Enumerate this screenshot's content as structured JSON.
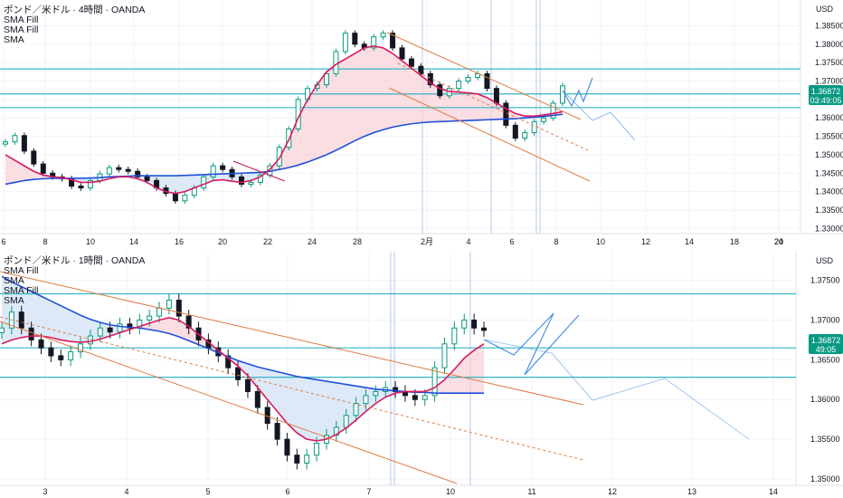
{
  "colors": {
    "candle_up": "#089981",
    "candle_down": "#131722",
    "sma_fast": "#d81b60",
    "sma_slow": "#1e4fd8",
    "fill_up": "#f8d0d6",
    "fill_down": "#cfe0f4",
    "level_line": "#33b5c5",
    "channel": "#e07a3e",
    "projection": "#4a90e2",
    "price_tag": "#089981",
    "session_line": "#b8c7e8"
  },
  "chart_data": [
    {
      "type": "candlestick",
      "title": "ポンド／米ドル · 4時間 · OANDA",
      "indicators": [
        "SMA Fill",
        "SMA Fill",
        "SMA"
      ],
      "currency": "USD",
      "y_ticks": [
        "1.38500",
        "1.38000",
        "1.37500",
        "1.37000",
        "1.36500",
        "1.36000",
        "1.35500",
        "1.35000",
        "1.34500",
        "1.34000",
        "1.33500",
        "1.33000"
      ],
      "ylim": [
        1.3286,
        1.392
      ],
      "x_ticks": [
        "6",
        "8",
        "10",
        "14",
        "16",
        "20",
        "22",
        "24",
        "28",
        "2月",
        "4",
        "6",
        "8",
        "10",
        "12",
        "14",
        "18",
        "20",
        "24"
      ],
      "last_price": "1.36872",
      "countdown": "03:49:05",
      "horizontal_levels": [
        1.3733,
        1.3665,
        1.3628
      ],
      "grid": true,
      "price_path": [
        1.3535,
        1.3552,
        1.351,
        1.3475,
        1.345,
        1.344,
        1.3435,
        1.3415,
        1.341,
        1.343,
        1.3448,
        1.3465,
        1.346,
        1.3455,
        1.344,
        1.343,
        1.341,
        1.3395,
        1.3375,
        1.339,
        1.341,
        1.344,
        1.347,
        1.346,
        1.344,
        1.342,
        1.3425,
        1.3445,
        1.347,
        1.352,
        1.357,
        1.365,
        1.368,
        1.369,
        1.372,
        1.378,
        1.383,
        1.38,
        1.379,
        1.382,
        1.383,
        1.379,
        1.376,
        1.374,
        1.372,
        1.369,
        1.366,
        1.368,
        1.37,
        1.371,
        1.372,
        1.368,
        1.364,
        1.358,
        1.3545,
        1.356,
        1.359,
        1.36,
        1.364,
        1.3687
      ],
      "sma_fast_path": [
        1.35,
        1.3485,
        1.347,
        1.3455,
        1.3445,
        1.344,
        1.3438,
        1.3432,
        1.3425,
        1.3425,
        1.3428,
        1.3435,
        1.344,
        1.344,
        1.3435,
        1.3425,
        1.341,
        1.34,
        1.3395,
        1.34,
        1.341,
        1.342,
        1.343,
        1.3432,
        1.3428,
        1.3425,
        1.343,
        1.344,
        1.346,
        1.349,
        1.354,
        1.36,
        1.365,
        1.369,
        1.3725,
        1.3745,
        1.376,
        1.3775,
        1.379,
        1.3795,
        1.379,
        1.3775,
        1.3755,
        1.3735,
        1.3715,
        1.3695,
        1.368,
        1.3672,
        1.367,
        1.3668,
        1.3665,
        1.3655,
        1.364,
        1.3625,
        1.3612,
        1.3605,
        1.3605,
        1.3608,
        1.3612,
        1.3617
      ],
      "sma_slow_path": [
        1.342,
        1.3425,
        1.343,
        1.3433,
        1.3435,
        1.3436,
        1.3436,
        1.3436,
        1.3436,
        1.3437,
        1.3438,
        1.344,
        1.3441,
        1.3442,
        1.3443,
        1.3443,
        1.3443,
        1.3443,
        1.3443,
        1.3444,
        1.3445,
        1.3446,
        1.3447,
        1.3448,
        1.3449,
        1.345,
        1.3451,
        1.3452,
        1.3455,
        1.346,
        1.3465,
        1.3472,
        1.348,
        1.349,
        1.35,
        1.3512,
        1.3525,
        1.3538,
        1.355,
        1.356,
        1.3568,
        1.3575,
        1.358,
        1.3584,
        1.3587,
        1.3589,
        1.359,
        1.3591,
        1.3592,
        1.3593,
        1.3594,
        1.3595,
        1.3596,
        1.3597,
        1.3598,
        1.36,
        1.3602,
        1.3604,
        1.3607,
        1.361
      ]
    },
    {
      "type": "candlestick",
      "title": "ポンド／米ドル · 1時間 · OANDA",
      "indicators": [
        "SMA Fill",
        "SMA",
        "SMA Fill",
        "SMA"
      ],
      "currency": "USD",
      "y_ticks": [
        "1.37500",
        "1.37000",
        "1.36500",
        "1.36000",
        "1.35500",
        "1.35000"
      ],
      "ylim": [
        1.3492,
        1.3786
      ],
      "x_ticks": [
        "3",
        "4",
        "5",
        "6",
        "7",
        "10",
        "11",
        "12",
        "13",
        "14"
      ],
      "last_price": "1.36872",
      "countdown": "49:05",
      "horizontal_levels": [
        1.3733,
        1.3665,
        1.3628
      ],
      "grid": true,
      "price_path": [
        1.369,
        1.371,
        1.369,
        1.3675,
        1.3665,
        1.3655,
        1.365,
        1.366,
        1.367,
        1.368,
        1.369,
        1.3685,
        1.3695,
        1.369,
        1.37,
        1.3705,
        1.3715,
        1.3725,
        1.3705,
        1.369,
        1.3675,
        1.3665,
        1.3655,
        1.364,
        1.3625,
        1.361,
        1.359,
        1.357,
        1.355,
        1.353,
        1.352,
        1.353,
        1.3545,
        1.3555,
        1.3565,
        1.358,
        1.3595,
        1.3605,
        1.361,
        1.3615,
        1.361,
        1.3605,
        1.36,
        1.3605,
        1.364,
        1.367,
        1.369,
        1.37,
        1.369,
        1.3687
      ],
      "sma_fast_path": [
        1.367,
        1.3675,
        1.3678,
        1.368,
        1.368,
        1.3678,
        1.3675,
        1.3673,
        1.3672,
        1.3673,
        1.3676,
        1.368,
        1.3684,
        1.3688,
        1.3692,
        1.3696,
        1.37,
        1.3703,
        1.37,
        1.3692,
        1.3682,
        1.3672,
        1.3662,
        1.3652,
        1.3642,
        1.363,
        1.3615,
        1.36,
        1.3585,
        1.357,
        1.3558,
        1.355,
        1.3548,
        1.355,
        1.3556,
        1.3564,
        1.3574,
        1.3585,
        1.3595,
        1.3603,
        1.3608,
        1.361,
        1.361,
        1.361,
        1.3615,
        1.3625,
        1.3638,
        1.3652,
        1.3662,
        1.367
      ],
      "sma_slow_path": [
        1.3755,
        1.3748,
        1.3742,
        1.3736,
        1.373,
        1.3724,
        1.3718,
        1.3712,
        1.3706,
        1.3701,
        1.3697,
        1.3694,
        1.3692,
        1.3691,
        1.369,
        1.3688,
        1.3686,
        1.3683,
        1.3679,
        1.3674,
        1.3669,
        1.3664,
        1.3659,
        1.3654,
        1.3649,
        1.3645,
        1.3641,
        1.3638,
        1.3635,
        1.3632,
        1.3629,
        1.3627,
        1.3625,
        1.3623,
        1.3621,
        1.3619,
        1.3617,
        1.3615,
        1.3613,
        1.3612,
        1.3611,
        1.361,
        1.3609,
        1.3609,
        1.3608,
        1.3608,
        1.3608,
        1.3608,
        1.3608,
        1.3608
      ]
    }
  ]
}
